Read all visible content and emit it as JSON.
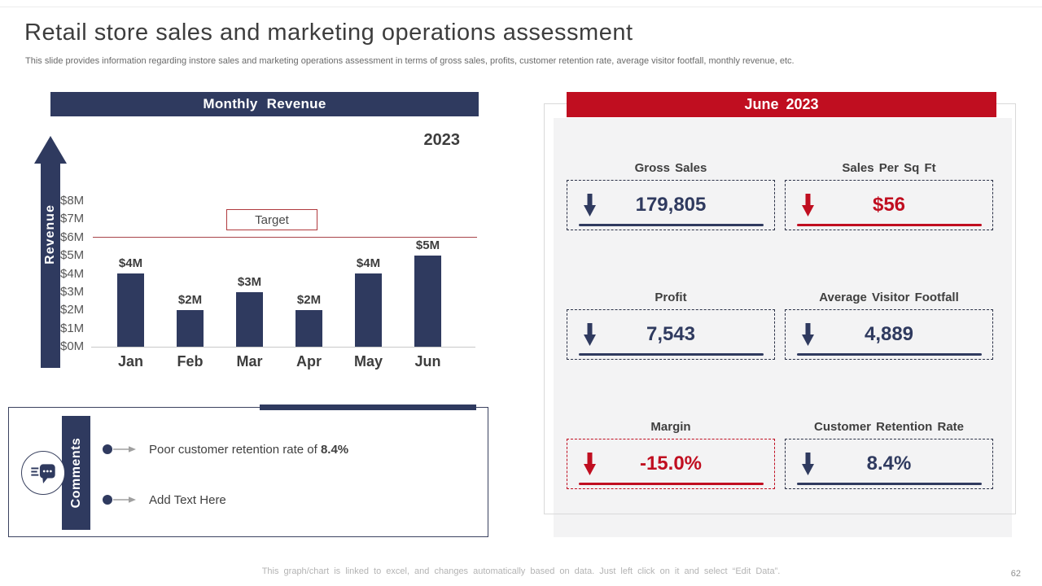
{
  "theme": {
    "navy": "#2F3A5F",
    "red": "#C00E20",
    "target_red": "#B03A3E",
    "panel_gray": "#F3F3F4"
  },
  "slide": {
    "title": "Retail store sales and marketing operations assessment",
    "subtitle": "This slide provides information regarding instore sales and marketing operations assessment in terms of gross sales, profits, customer retention rate, average visitor footfall, monthly revenue, etc.",
    "footer_note": "This graph/chart is linked to excel, and changes automatically based on data. Just left click on it and select “Edit Data”.",
    "page_number": "62"
  },
  "chart": {
    "header": "Monthly Revenue",
    "year_label": "2023",
    "axis_label": "Revenue"
  },
  "chart_data": {
    "type": "bar",
    "title": "Monthly Revenue",
    "categories": [
      "Jan",
      "Feb",
      "Mar",
      "Apr",
      "May",
      "Jun"
    ],
    "values": [
      4,
      2,
      3,
      2,
      4,
      5
    ],
    "value_labels": [
      "$4M",
      "$2M",
      "$3M",
      "$2M",
      "$4M",
      "$5M"
    ],
    "unit": "USD millions",
    "xlabel": "",
    "ylabel": "Revenue",
    "ylim": [
      0,
      8
    ],
    "ytick_labels": [
      "$8M",
      "$7M",
      "$6M",
      "$5M",
      "$4M",
      "$3M",
      "$2M",
      "$1M",
      "$0M"
    ],
    "target": {
      "label": "Target",
      "value": 6
    },
    "series_color": "#2F3A5F",
    "grid": false,
    "legend": false
  },
  "june_panel": {
    "header": "June 2023",
    "kpis": [
      {
        "label": "Gross Sales",
        "value": "179,805",
        "color": "navy",
        "box_border": "navy"
      },
      {
        "label": "Sales Per Sq Ft",
        "value": "$56",
        "color": "red",
        "box_border": "navy"
      },
      {
        "label": "Profit",
        "value": "7,543",
        "color": "navy",
        "box_border": "navy"
      },
      {
        "label": "Average Visitor Footfall",
        "value": "4,889",
        "color": "navy",
        "box_border": "navy"
      },
      {
        "label": "Margin",
        "value": "-15.0%",
        "color": "red",
        "box_border": "red"
      },
      {
        "label": "Customer Retention Rate",
        "value": "8.4%",
        "color": "navy",
        "box_border": "navy"
      }
    ]
  },
  "comments": {
    "title": "Comments",
    "items": [
      {
        "text": "Poor customer retention rate of ",
        "bold": "8.4%"
      },
      {
        "text": "Add Text Here",
        "bold": ""
      }
    ]
  }
}
